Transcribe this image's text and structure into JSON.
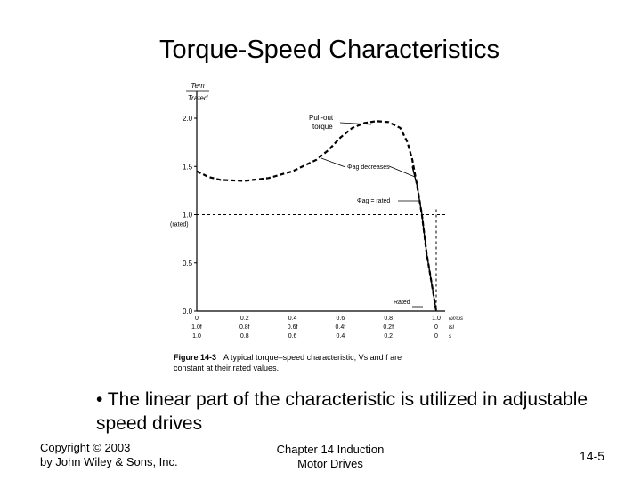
{
  "slide": {
    "title": "Torque-Speed Characteristics",
    "bullet": "• The linear part of the characteristic is utilized in adjustable speed drives",
    "footer_left_line1": "Copyright © 2003",
    "footer_left_line2": "by John Wiley & Sons, Inc.",
    "footer_center_line1": "Chapter 14 Induction",
    "footer_center_line2": "Motor Drives",
    "page_number": "14-5"
  },
  "chart_data": {
    "type": "line",
    "title": "",
    "ylabel_num": "Tem",
    "ylabel_den": "Trated",
    "xlim": [
      0,
      1.05
    ],
    "ylim": [
      0,
      2.2
    ],
    "y_ticks": [
      {
        "value": 0.0,
        "label": "0.0"
      },
      {
        "value": 0.5,
        "label": "0.5"
      },
      {
        "value": 1.0,
        "label": "1.0"
      },
      {
        "value": 1.5,
        "label": "1.5"
      },
      {
        "value": 2.0,
        "label": "2.0"
      }
    ],
    "rated_label": "(rated)",
    "x_rows": [
      {
        "labels": [
          "0",
          "0.2",
          "0.4",
          "0.6",
          "0.8",
          "1.0"
        ],
        "end_label": "ωr/ωs"
      },
      {
        "labels": [
          "1.0f",
          "0.8f",
          "0.6f",
          "0.4f",
          "0.2f",
          "0"
        ],
        "end_label": "fsl"
      },
      {
        "labels": [
          "1.0",
          "0.8",
          "0.6",
          "0.4",
          "0.2",
          "0"
        ],
        "end_label": "s"
      }
    ],
    "x_positions": [
      0,
      0.2,
      0.4,
      0.6,
      0.8,
      1.0
    ],
    "series": [
      {
        "style": "dashed",
        "points": [
          [
            0,
            1.45
          ],
          [
            0.05,
            1.39
          ],
          [
            0.1,
            1.36
          ],
          [
            0.2,
            1.35
          ],
          [
            0.3,
            1.38
          ],
          [
            0.4,
            1.45
          ],
          [
            0.5,
            1.57
          ],
          [
            0.55,
            1.67
          ],
          [
            0.6,
            1.8
          ],
          [
            0.65,
            1.9
          ],
          [
            0.7,
            1.95
          ],
          [
            0.75,
            1.97
          ],
          [
            0.8,
            1.96
          ],
          [
            0.85,
            1.9
          ],
          [
            0.88,
            1.75
          ],
          [
            0.9,
            1.57
          ],
          [
            0.92,
            1.3
          ],
          [
            0.94,
            1.0
          ],
          [
            0.96,
            0.6
          ],
          [
            0.98,
            0.3
          ],
          [
            1.0,
            0.0
          ]
        ]
      },
      {
        "style": "solid",
        "points": [
          [
            0.9,
            1.5
          ],
          [
            0.92,
            1.3
          ],
          [
            0.94,
            1.0
          ],
          [
            0.96,
            0.6
          ],
          [
            0.98,
            0.3
          ],
          [
            1.0,
            0.0
          ]
        ]
      }
    ],
    "reference_line": {
      "y": 1.0,
      "style": "dashed"
    },
    "annotations": {
      "pullout_line1": "Pull-out",
      "pullout_line2": "torque",
      "phi_decreases": "Φag decreases",
      "phi_rated": "Φag = rated",
      "rated": "Rated"
    },
    "caption_bold": "Figure 14-3",
    "caption_line1": "A typical torque–speed characteristic; Vs and f are",
    "caption_line2": "constant at their rated values."
  }
}
